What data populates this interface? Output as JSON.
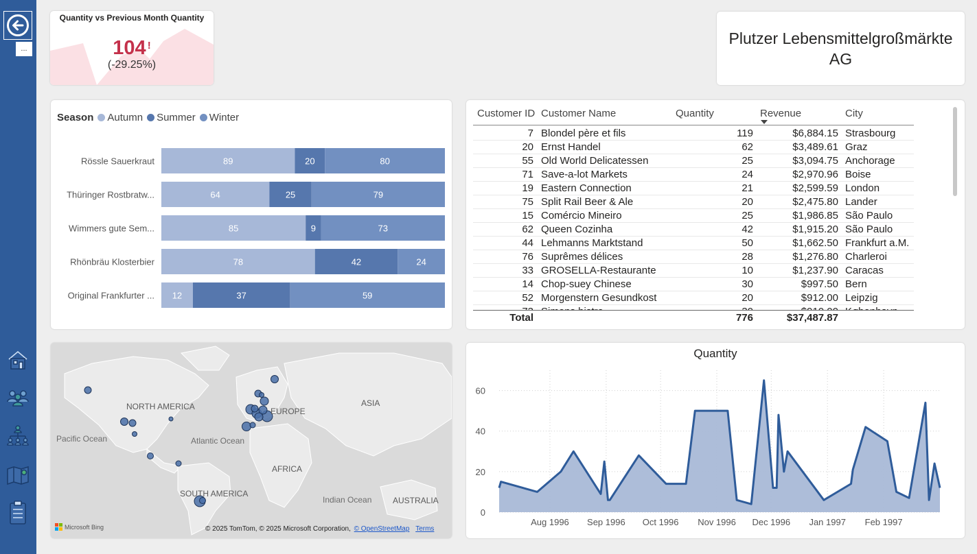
{
  "sidebar": {
    "back_icon": "arrow-left-circle-icon",
    "more_label": "...",
    "nav": [
      "home-icon",
      "people-icon",
      "org-chart-icon",
      "map-icon",
      "checklist-icon"
    ]
  },
  "kpi": {
    "title": "Quantity vs Previous Month Quantity",
    "value": "104",
    "alert": "!",
    "change": "(-29.25%)"
  },
  "title_card": {
    "line1": "Plutzer Lebensmittelgroßmärkte",
    "line2": "AG"
  },
  "colors": {
    "autumn": "#a7b8d8",
    "summer": "#5677ad",
    "winter": "#7290c1",
    "kpi_red": "#c4314b",
    "line": "#2f5c9a",
    "area": "#a9b9d7"
  },
  "bar_chart": {
    "legend_title": "Season",
    "legend": [
      {
        "name": "Autumn",
        "color": "#a7b8d8"
      },
      {
        "name": "Summer",
        "color": "#5677ad"
      },
      {
        "name": "Winter",
        "color": "#7290c1"
      }
    ]
  },
  "table": {
    "headers": [
      "Customer ID",
      "Customer Name",
      "Quantity",
      "Revenue",
      "City"
    ],
    "rows": [
      [
        "7",
        "Blondel père et fils",
        "119",
        "$6,884.15",
        "Strasbourg"
      ],
      [
        "20",
        "Ernst Handel",
        "62",
        "$3,489.61",
        "Graz"
      ],
      [
        "55",
        "Old World Delicatessen",
        "25",
        "$3,094.75",
        "Anchorage"
      ],
      [
        "71",
        "Save-a-lot Markets",
        "24",
        "$2,970.96",
        "Boise"
      ],
      [
        "19",
        "Eastern Connection",
        "21",
        "$2,599.59",
        "London"
      ],
      [
        "75",
        "Split Rail Beer & Ale",
        "20",
        "$2,475.80",
        "Lander"
      ],
      [
        "15",
        "Comércio Mineiro",
        "25",
        "$1,986.85",
        "São Paulo"
      ],
      [
        "62",
        "Queen Cozinha",
        "42",
        "$1,915.20",
        "São Paulo"
      ],
      [
        "44",
        "Lehmanns Marktstand",
        "50",
        "$1,662.50",
        "Frankfurt a.M."
      ],
      [
        "76",
        "Suprêmes délices",
        "28",
        "$1,276.80",
        "Charleroi"
      ],
      [
        "33",
        "GROSELLA-Restaurante",
        "10",
        "$1,237.90",
        "Caracas"
      ],
      [
        "14",
        "Chop-suey Chinese",
        "30",
        "$997.50",
        "Bern"
      ],
      [
        "52",
        "Morgenstern Gesundkost",
        "20",
        "$912.00",
        "Leipzig"
      ]
    ],
    "total_label": "Total",
    "total_quantity": "776",
    "total_revenue": "$37,487.87"
  },
  "map": {
    "labels": {
      "north_america": "NORTH AMERICA",
      "europe": "EUROPE",
      "asia": "ASIA",
      "pacific": "Pacific Ocean",
      "atlantic": "Atlantic Ocean",
      "africa": "AFRICA",
      "south_america": "SOUTH AMERICA",
      "indian": "Indian Ocean",
      "australia": "AUSTRALIA"
    },
    "bing": "Microsoft Bing",
    "copyright": "© 2025 TomTom, © 2025 Microsoft Corporation,",
    "osm_link": "© OpenStreetMap",
    "terms_link": "Terms"
  },
  "chart_data": [
    {
      "type": "bar",
      "orientation": "horizontal",
      "stacked": "100%",
      "title": "",
      "legend_title": "Season",
      "categories": [
        "Rössle Sauerkraut",
        "Thüringer Rostbratw...",
        "Wimmers gute Sem...",
        "Rhönbräu Klosterbier",
        "Original Frankfurter ..."
      ],
      "series": [
        {
          "name": "Autumn",
          "values": [
            89,
            64,
            85,
            78,
            12
          ]
        },
        {
          "name": "Summer",
          "values": [
            20,
            25,
            9,
            42,
            37
          ]
        },
        {
          "name": "Winter",
          "values": [
            80,
            79,
            73,
            24,
            59
          ]
        }
      ]
    },
    {
      "type": "area",
      "title": "Quantity",
      "ylabel": "",
      "xlabel": "",
      "ylim": [
        0,
        70
      ],
      "y_ticks": [
        0,
        20,
        40,
        60
      ],
      "x_tick_labels": [
        "Aug 1996",
        "Sep 1996",
        "Oct 1996",
        "Nov 1996",
        "Dec 1996",
        "Jan 1997",
        "Feb 1997"
      ],
      "x_start": "1996-07-04",
      "x_end": "1997-03-04",
      "points": [
        [
          "1996-07-04",
          12
        ],
        [
          "1996-07-05",
          15
        ],
        [
          "1996-07-25",
          10
        ],
        [
          "1996-08-07",
          20
        ],
        [
          "1996-08-14",
          30
        ],
        [
          "1996-08-29",
          9
        ],
        [
          "1996-08-31",
          25
        ],
        [
          "1996-09-02",
          6
        ],
        [
          "1996-09-03",
          6
        ],
        [
          "1996-09-19",
          28
        ],
        [
          "1996-10-04",
          14
        ],
        [
          "1996-10-15",
          14
        ],
        [
          "1996-10-20",
          50
        ],
        [
          "1996-11-05",
          50
        ],
        [
          "1996-11-07",
          50
        ],
        [
          "1996-11-12",
          6
        ],
        [
          "1996-11-20",
          4
        ],
        [
          "1996-11-27",
          65
        ],
        [
          "1996-12-02",
          12
        ],
        [
          "1996-12-04",
          12
        ],
        [
          "1996-12-05",
          48
        ],
        [
          "1996-12-08",
          20
        ],
        [
          "1996-12-10",
          30
        ],
        [
          "1996-12-30",
          6
        ],
        [
          "1997-01-14",
          14
        ],
        [
          "1997-01-15",
          21
        ],
        [
          "1997-01-22",
          42
        ],
        [
          "1997-02-03",
          35
        ],
        [
          "1997-02-08",
          10
        ],
        [
          "1997-02-15",
          7
        ],
        [
          "1997-02-24",
          54
        ],
        [
          "1997-02-26",
          6
        ],
        [
          "1997-03-01",
          24
        ],
        [
          "1997-03-04",
          12
        ]
      ]
    }
  ]
}
